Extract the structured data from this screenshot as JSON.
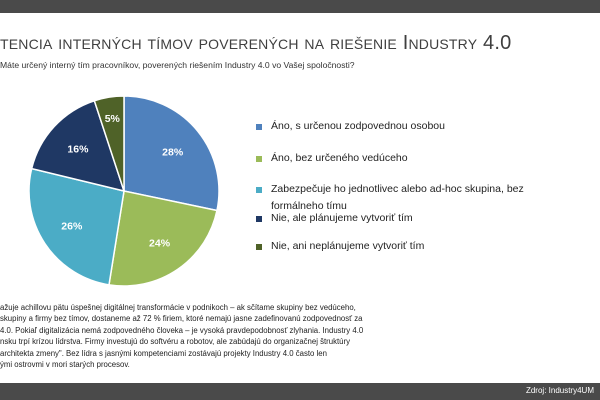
{
  "header": {
    "title": "tencia interných tímov poverených na riešenie Industry 4.0",
    "question": "Máte určený interný tím pracovníkov, poverených riešením Industry 4.0 vo Vašej spoločnosti?"
  },
  "chart_data": {
    "type": "pie",
    "title": "",
    "start_angle_deg": 0,
    "slices": [
      {
        "label": "Áno, s určenou zodpovednou osobou",
        "value": 28,
        "display": "28%",
        "color": "#4f81bd",
        "label_color": "#ffffff"
      },
      {
        "label": "Áno, bez určeného vedúceho",
        "value": 24,
        "display": "24%",
        "color": "#9bbb59",
        "label_color": "#ffffff"
      },
      {
        "label": "Zabezpečuje ho jednotlivec alebo ad-hoc skupina, bez formálneho tímu",
        "value": 26,
        "display": "26%",
        "color": "#4bacc6",
        "label_color": "#ffffff"
      },
      {
        "label": "Nie, ale plánujeme vytvoriť tím",
        "value": 16,
        "display": "16%",
        "color": "#1f3864",
        "label_color": "#ffffff"
      },
      {
        "label": "Nie, ani neplánujeme vytvoriť tím",
        "value": 5,
        "display": "5%",
        "color": "#4f6228",
        "label_color": "#ffffff"
      }
    ],
    "legend_position": "right"
  },
  "body_text": {
    "lines": [
      "ažuje achillovu pätu úspešnej digitálnej transformácie v podnikoch – ak sčítame skupiny bez vedúceho,",
      "skupiny a firmy bez tímov, dostaneme až 72 % firiem, ktoré nemajú jasne zadefinovanú zodpovednosť za",
      "4.0. Pokiaľ digitalizácia nemá zodpovedného človeka – je vysoká pravdepodobnosť zlyhania. Industry 4.0",
      "nsku trpí krízou lídrstva. Firmy investujú do softvéru a robotov, ale zabúdajú do organizačnej štruktúry",
      "architekta zmeny\". Bez lídra s jasnými kompetenciami zostávajú projekty Industry 4.0 často len",
      "ými ostrovmi v mori starých procesov."
    ]
  },
  "footer": {
    "source": "Zdroj: Industry4UM"
  }
}
